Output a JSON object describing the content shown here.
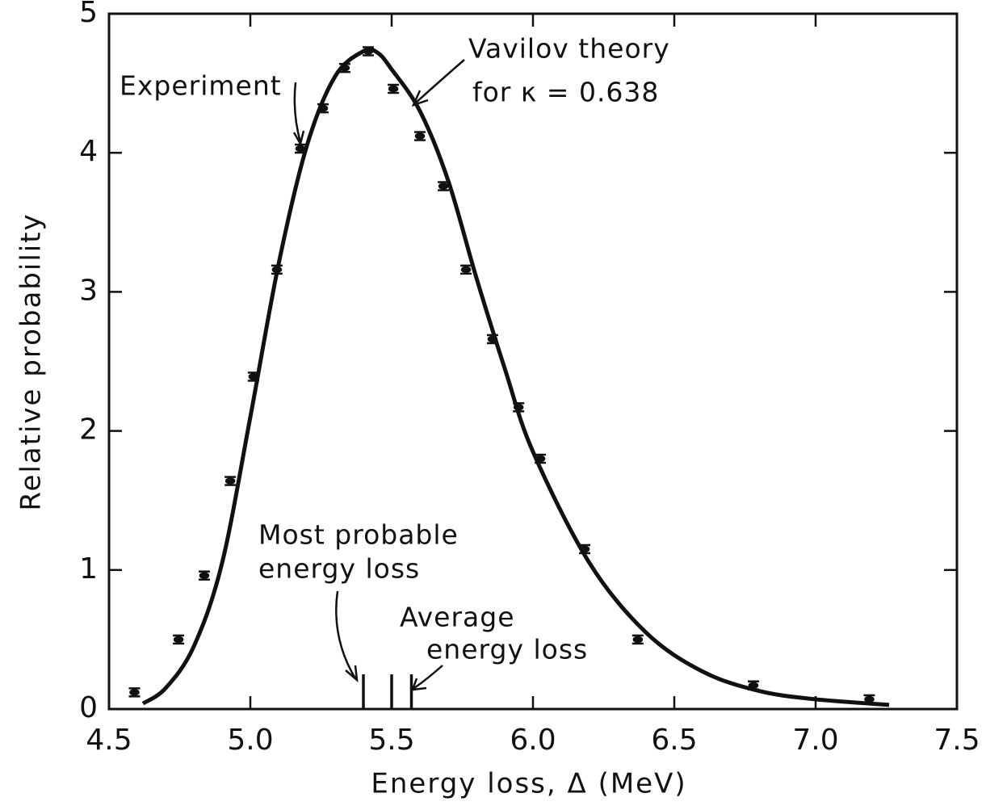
{
  "chart_data": {
    "type": "scatter",
    "xlabel": "Energy loss, Δ (MeV)",
    "ylabel": "Relative probability",
    "xlim": [
      4.5,
      7.5
    ],
    "xticks": [
      4.5,
      {
        "value": 5,
        "label": "5.0"
      },
      5.5,
      {
        "value": 6,
        "label": "6.0"
      },
      6.5,
      {
        "value": 7,
        "label": "7.0"
      },
      7.5
    ],
    "ylim": [
      0,
      5
    ],
    "yticks": [
      0,
      1,
      2,
      3,
      4,
      5
    ],
    "series": [
      {
        "name": "Experiment",
        "color": "#111111",
        "x": [
          4.59,
          4.746,
          4.837,
          4.929,
          5.011,
          5.094,
          5.177,
          5.257,
          5.334,
          5.417,
          5.506,
          5.6,
          5.683,
          5.763,
          5.857,
          5.949,
          6.026,
          6.183,
          6.371,
          6.78,
          7.19
        ],
        "values": [
          0.12,
          0.5,
          0.96,
          1.64,
          2.39,
          3.16,
          4.03,
          4.32,
          4.61,
          4.73,
          4.46,
          4.12,
          3.76,
          3.16,
          2.66,
          2.17,
          1.8,
          1.15,
          0.5,
          0.17,
          0.07
        ]
      },
      {
        "name": "Vavilov theory",
        "color": "#111111",
        "x": [
          4.62,
          4.7,
          4.8,
          4.9,
          5.0,
          5.1,
          5.2,
          5.3,
          5.4,
          5.45,
          5.5,
          5.6,
          5.7,
          5.8,
          5.9,
          6.0,
          6.2,
          6.4,
          6.6,
          6.8,
          7.0,
          7.26
        ],
        "values": [
          0.04,
          0.15,
          0.45,
          1.05,
          2.1,
          3.2,
          4.05,
          4.55,
          4.73,
          4.72,
          4.6,
          4.3,
          3.8,
          3.1,
          2.45,
          1.85,
          1.05,
          0.55,
          0.27,
          0.13,
          0.07,
          0.03
        ]
      }
    ],
    "annotations": [
      "for κ = 0.638"
    ],
    "markers": [
      {
        "label": [
          "Most probable",
          "energy loss"
        ],
        "x": 5.4,
        "y": 0.25
      },
      {
        "x": 5.5,
        "y": 0.25
      },
      {
        "label": [
          "Average",
          "energy loss"
        ],
        "x": 5.57,
        "y": 0.25
      }
    ]
  }
}
